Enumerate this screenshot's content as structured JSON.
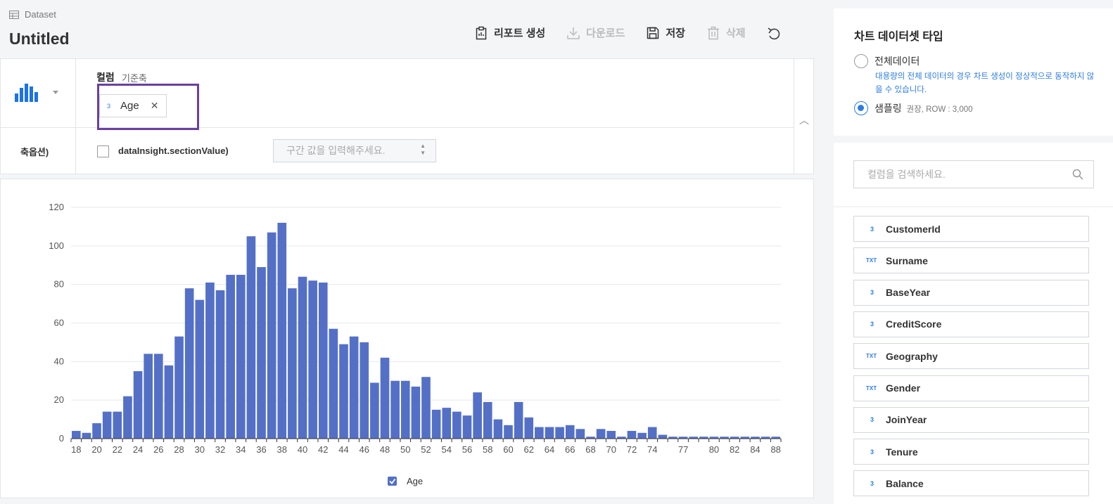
{
  "header": {
    "breadcrumb": "Dataset",
    "title": "Untitled",
    "toolbar": {
      "report_label": "리포트 생성",
      "download_label": "다운로드",
      "save_label": "저장",
      "delete_label": "삭제"
    }
  },
  "config": {
    "column_label": "컬럼",
    "column_sub": "기준축",
    "selected_column": {
      "type_mark": "3",
      "name": "Age"
    },
    "axis_option_label": "축옵션)",
    "section_checkbox_label": "dataInsight.sectionValue)",
    "section_placeholder": "구간 값을 입력해주세요."
  },
  "chart_data": {
    "type": "bar",
    "categories": [
      "18",
      "19",
      "20",
      "21",
      "22",
      "23",
      "24",
      "25",
      "26",
      "27",
      "28",
      "29",
      "30",
      "31",
      "32",
      "33",
      "34",
      "35",
      "36",
      "37",
      "38",
      "39",
      "40",
      "41",
      "42",
      "43",
      "44",
      "45",
      "46",
      "47",
      "48",
      "49",
      "50",
      "51",
      "52",
      "53",
      "54",
      "55",
      "56",
      "57",
      "58",
      "59",
      "60",
      "61",
      "62",
      "63",
      "64",
      "65",
      "66",
      "67",
      "68",
      "69",
      "70",
      "71",
      "72",
      "73",
      "74",
      "75",
      "76",
      "77",
      "78",
      "79",
      "80",
      "81",
      "82",
      "83",
      "84",
      "85",
      "88"
    ],
    "tick_labels": [
      "18",
      "20",
      "22",
      "24",
      "26",
      "28",
      "30",
      "32",
      "34",
      "36",
      "38",
      "40",
      "42",
      "44",
      "46",
      "48",
      "50",
      "52",
      "54",
      "56",
      "58",
      "60",
      "62",
      "64",
      "66",
      "68",
      "70",
      "72",
      "74",
      "77",
      "80",
      "82",
      "84",
      "88"
    ],
    "values": [
      4,
      3,
      8,
      14,
      14,
      22,
      35,
      44,
      44,
      38,
      53,
      78,
      72,
      81,
      77,
      85,
      85,
      105,
      89,
      107,
      112,
      78,
      84,
      82,
      81,
      57,
      49,
      53,
      50,
      29,
      42,
      30,
      30,
      27,
      32,
      15,
      16,
      14,
      12,
      24,
      19,
      10,
      7,
      19,
      11,
      6,
      6,
      6,
      7,
      5,
      1,
      5,
      4,
      1,
      4,
      3,
      6,
      2,
      1,
      1,
      1,
      1,
      1,
      1,
      1,
      1,
      1,
      1,
      1
    ],
    "ylim": [
      0,
      120
    ],
    "yticks": [
      0,
      20,
      40,
      60,
      80,
      100,
      120
    ],
    "series_name": "Age",
    "bar_color": "#5470c6",
    "grid": true,
    "legend_position": "bottom"
  },
  "dataset_panel": {
    "title": "차트 데이터셋 타입",
    "option_full": "전체데이터",
    "option_full_note": "대용량의 전체 데이터의 경우 차트 생성이 정상적으로 동작하지 않을 수 있습니다.",
    "option_sampling": "샘플링",
    "option_sampling_note": "권장, ROW : 3,000",
    "selected": "sampling"
  },
  "column_panel": {
    "search_placeholder": "컬럼을 검색하세요.",
    "columns": [
      {
        "type": "3",
        "name": "CustomerId"
      },
      {
        "type": "TXT",
        "name": "Surname"
      },
      {
        "type": "3",
        "name": "BaseYear"
      },
      {
        "type": "3",
        "name": "CreditScore"
      },
      {
        "type": "TXT",
        "name": "Geography"
      },
      {
        "type": "TXT",
        "name": "Gender"
      },
      {
        "type": "3",
        "name": "JoinYear"
      },
      {
        "type": "3",
        "name": "Tenure"
      },
      {
        "type": "3",
        "name": "Balance"
      }
    ]
  },
  "colors": {
    "accent": "#2b7de1",
    "highlight": "#6b3fa0",
    "bar": "#5470c6"
  }
}
